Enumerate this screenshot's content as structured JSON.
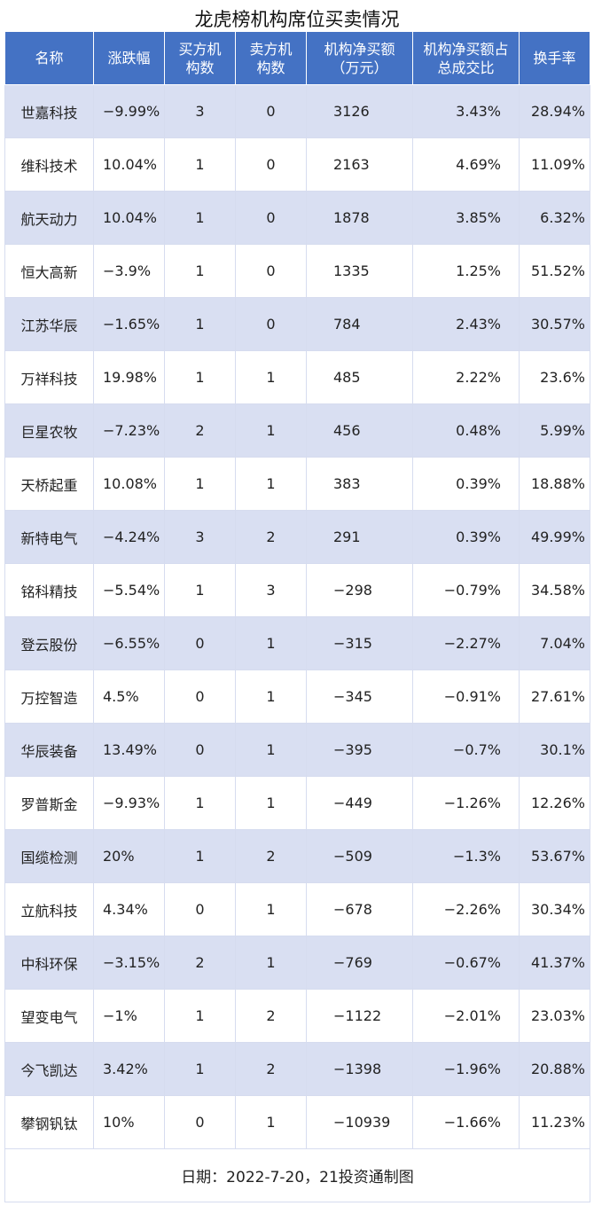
{
  "chart_data": {
    "type": "table",
    "title": "龙虎榜机构席位买卖情况",
    "columns": [
      "名称",
      "涨跌幅",
      "买方机\n构数",
      "卖方机\n构数",
      "机构净买额\n（万元）",
      "机构净买额占\n总成交比",
      "换手率"
    ],
    "rows": [
      [
        "世嘉科技",
        "−9.99%",
        "3",
        "0",
        "3126",
        "3.43%",
        "28.94%"
      ],
      [
        "维科技术",
        "10.04%",
        "1",
        "0",
        "2163",
        "4.69%",
        "11.09%"
      ],
      [
        "航天动力",
        "10.04%",
        "1",
        "0",
        "1878",
        "3.85%",
        "6.32%"
      ],
      [
        "恒大高新",
        "−3.9%",
        "1",
        "0",
        "1335",
        "1.25%",
        "51.52%"
      ],
      [
        "江苏华辰",
        "−1.65%",
        "1",
        "0",
        "784",
        "2.43%",
        "30.57%"
      ],
      [
        "万祥科技",
        "19.98%",
        "1",
        "1",
        "485",
        "2.22%",
        "23.6%"
      ],
      [
        "巨星农牧",
        "−7.23%",
        "2",
        "1",
        "456",
        "0.48%",
        "5.99%"
      ],
      [
        "天桥起重",
        "10.08%",
        "1",
        "1",
        "383",
        "0.39%",
        "18.88%"
      ],
      [
        "新特电气",
        "−4.24%",
        "3",
        "2",
        "291",
        "0.39%",
        "49.99%"
      ],
      [
        "铭科精技",
        "−5.54%",
        "1",
        "3",
        "−298",
        "−0.79%",
        "34.58%"
      ],
      [
        "登云股份",
        "−6.55%",
        "0",
        "1",
        "−315",
        "−2.27%",
        "7.04%"
      ],
      [
        "万控智造",
        "4.5%",
        "0",
        "1",
        "−345",
        "−0.91%",
        "27.61%"
      ],
      [
        "华辰装备",
        "13.49%",
        "0",
        "1",
        "−395",
        "−0.7%",
        "30.1%"
      ],
      [
        "罗普斯金",
        "−9.93%",
        "1",
        "1",
        "−449",
        "−1.26%",
        "12.26%"
      ],
      [
        "国缆检测",
        "20%",
        "1",
        "2",
        "−509",
        "−1.3%",
        "53.67%"
      ],
      [
        "立航科技",
        "4.34%",
        "0",
        "1",
        "−678",
        "−2.26%",
        "30.34%"
      ],
      [
        "中科环保",
        "−3.15%",
        "2",
        "1",
        "−769",
        "−0.67%",
        "41.37%"
      ],
      [
        "望变电气",
        "−1%",
        "1",
        "2",
        "−1122",
        "−2.01%",
        "23.03%"
      ],
      [
        "今飞凯达",
        "3.42%",
        "1",
        "2",
        "−1398",
        "−1.96%",
        "20.88%"
      ],
      [
        "攀钢钒钛",
        "10%",
        "0",
        "1",
        "−10939",
        "−1.66%",
        "11.23%"
      ]
    ],
    "footer": "日期：2022-7-20，21投资通制图",
    "colors": {
      "header": "#4472C4",
      "stripe": "#D9DFF2",
      "grid": "#d6dcef"
    }
  }
}
